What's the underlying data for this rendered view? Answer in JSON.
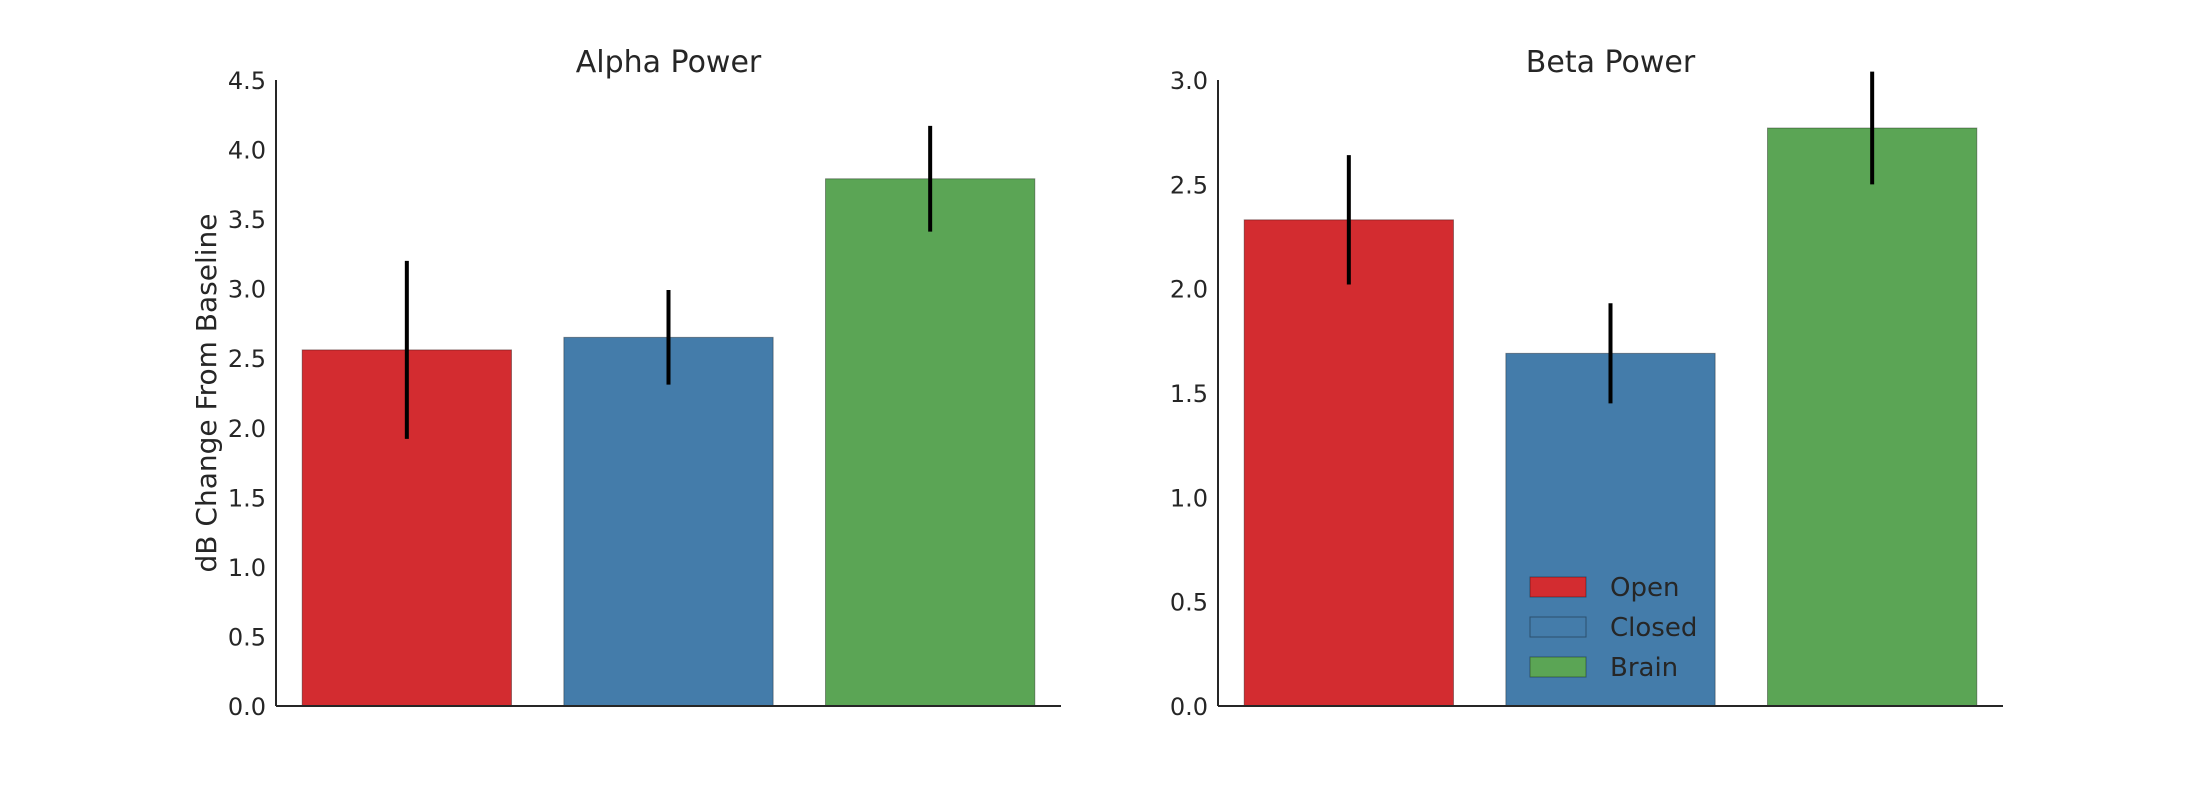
{
  "chart_data": [
    {
      "type": "bar",
      "title": "Alpha Power",
      "ylabel": "dB Change From Baseline",
      "xlabel": "",
      "ylim": [
        0,
        4.5
      ],
      "yticks": [
        0.0,
        0.5,
        1.0,
        1.5,
        2.0,
        2.5,
        3.0,
        3.5,
        4.0,
        4.5
      ],
      "ytick_labels": [
        "0.0",
        "0.5",
        "1.0",
        "1.5",
        "2.0",
        "2.5",
        "3.0",
        "3.5",
        "4.0",
        "4.5"
      ],
      "categories": [
        "Open",
        "Closed",
        "Brain"
      ],
      "values": [
        2.56,
        2.65,
        3.79
      ],
      "errors": [
        0.64,
        0.34,
        0.38
      ],
      "colors": [
        "#d32c30",
        "#447caa",
        "#5ba555"
      ],
      "grid": false,
      "legend": null
    },
    {
      "type": "bar",
      "title": "Beta Power",
      "ylabel": "",
      "xlabel": "",
      "ylim": [
        0,
        3.0
      ],
      "yticks": [
        0.0,
        0.5,
        1.0,
        1.5,
        2.0,
        2.5,
        3.0
      ],
      "ytick_labels": [
        "0.0",
        "0.5",
        "1.0",
        "1.5",
        "2.0",
        "2.5",
        "3.0"
      ],
      "categories": [
        "Open",
        "Closed",
        "Brain"
      ],
      "values": [
        2.33,
        1.69,
        2.77
      ],
      "errors": [
        0.31,
        0.24,
        0.27
      ],
      "colors": [
        "#d32c30",
        "#447caa",
        "#5ba555"
      ],
      "grid": false,
      "legend": {
        "placement": "lower-left",
        "entries": [
          "Open",
          "Closed",
          "Brain"
        ]
      }
    }
  ]
}
